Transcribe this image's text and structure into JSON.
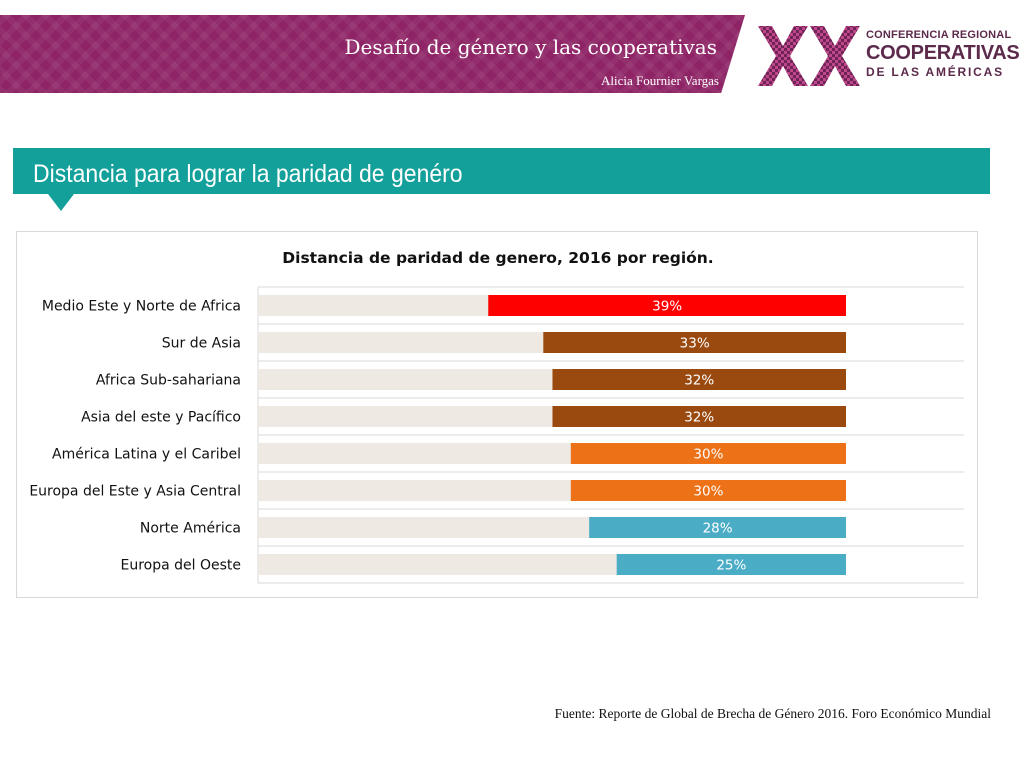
{
  "header": {
    "title": "Desafío de género y las cooperativas",
    "author": "Alicia Fournier Vargas"
  },
  "logo": {
    "mark": "XX",
    "line1": "CONFERENCIA REGIONAL",
    "line2": "COOPERATIVAS",
    "line3": "DE LAS AMÉRICAS"
  },
  "section": {
    "title": "Distancia para lograr la paridad de genéro"
  },
  "chart_data": {
    "type": "bar",
    "orientation": "horizontal",
    "title": "Distancia de paridad de genero, 2016 por región.",
    "categories": [
      "Medio Este y Norte de Africa",
      "Sur de Asia",
      "Africa Sub-sahariana",
      "Asia del este y Pacífico",
      "América Latina y el Caribel",
      "Europa del Este y Asia Central",
      "Norte América",
      "Europa del Oeste"
    ],
    "values": [
      39,
      33,
      32,
      32,
      30,
      30,
      28,
      25
    ],
    "value_labels": [
      "39%",
      "33%",
      "32%",
      "32%",
      "30%",
      "30%",
      "28%",
      "25%"
    ],
    "bar_colors": [
      "#ff0000",
      "#9a4a0f",
      "#9a4a0f",
      "#9a4a0f",
      "#ec7117",
      "#ec7117",
      "#4bacc6",
      "#4bacc6"
    ],
    "track_color": "#eeeae3",
    "grid": true,
    "xlim": [
      0,
      100
    ]
  },
  "source": {
    "text": "Fuente: Reporte de Global de Brecha de Género 2016. Foro Económico Mundial"
  }
}
